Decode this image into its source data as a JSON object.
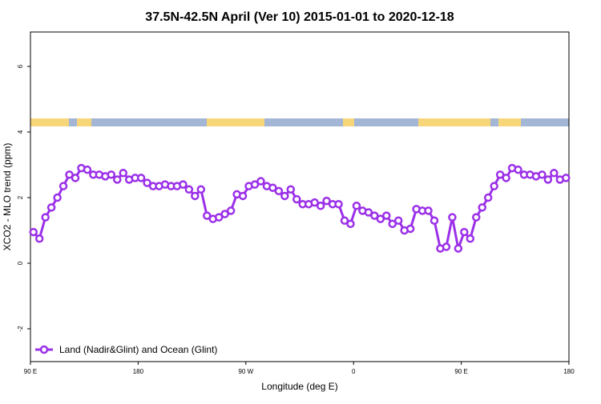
{
  "chart_data": {
    "type": "line",
    "title": "37.5N-42.5N April (Ver 10)   2015-01-01 to 2020-12-18",
    "xlabel": "Longitude (deg E)",
    "ylabel": "XCO2 - MLO trend (ppm)",
    "xlim": [
      90,
      540
    ],
    "xticks": [
      {
        "value": 90,
        "label": "90 E"
      },
      {
        "value": 180,
        "label": "180"
      },
      {
        "value": 270,
        "label": "90 W"
      },
      {
        "value": 360,
        "label": "0"
      },
      {
        "value": 450,
        "label": "90 E"
      },
      {
        "value": 540,
        "label": "180"
      }
    ],
    "ylim": [
      -3,
      7.05
    ],
    "yticks": [
      -2,
      0,
      2,
      4,
      6
    ],
    "grid": false,
    "legend": "bottom-left",
    "x": [
      92.5,
      97.5,
      102.5,
      107.5,
      112.5,
      117.5,
      122.5,
      127.5,
      132.5,
      137.5,
      142.5,
      147.5,
      152.5,
      157.5,
      162.5,
      167.5,
      172.5,
      177.5,
      182.5,
      187.5,
      192.5,
      197.5,
      202.5,
      207.5,
      212.5,
      217.5,
      222.5,
      227.5,
      232.5,
      237.5,
      242.5,
      247.5,
      252.5,
      257.5,
      262.5,
      267.5,
      272.5,
      277.5,
      282.5,
      287.5,
      292.5,
      297.5,
      302.5,
      307.5,
      312.5,
      317.5,
      322.5,
      327.5,
      332.5,
      337.5,
      342.5,
      347.5,
      352.5,
      357.5,
      362.5,
      367.5,
      372.5,
      377.5,
      382.5,
      387.5,
      392.5,
      397.5,
      402.5,
      407.5,
      412.5,
      417.5,
      422.5,
      427.5,
      432.5,
      437.5,
      442.5,
      447.5,
      452.5,
      457.5,
      462.5,
      467.5,
      472.5,
      477.5,
      482.5,
      487.5,
      492.5,
      497.5,
      502.5,
      507.5,
      512.5,
      517.5,
      522.5,
      527.5,
      532.5,
      537.5
    ],
    "series": [
      {
        "name": "Land (Nadir&Glint) and Ocean (Glint)",
        "color": "#9b30e8",
        "values": [
          0.95,
          0.75,
          1.4,
          1.7,
          2.0,
          2.35,
          2.7,
          2.6,
          2.9,
          2.85,
          2.7,
          2.7,
          2.65,
          2.7,
          2.55,
          2.75,
          2.55,
          2.6,
          2.6,
          2.45,
          2.35,
          2.35,
          2.4,
          2.35,
          2.35,
          2.4,
          2.25,
          2.05,
          2.25,
          1.45,
          1.35,
          1.4,
          1.5,
          1.6,
          2.1,
          2.05,
          2.35,
          2.4,
          2.5,
          2.35,
          2.3,
          2.2,
          2.05,
          2.25,
          1.95,
          1.8,
          1.8,
          1.85,
          1.75,
          1.9,
          1.8,
          1.8,
          1.3,
          1.2,
          1.75,
          1.6,
          1.55,
          1.45,
          1.35,
          1.45,
          1.2,
          1.3,
          1.0,
          1.05,
          1.65,
          1.6,
          1.6,
          1.3,
          0.45,
          0.5,
          1.4,
          0.45,
          0.95,
          0.75,
          1.4,
          1.7,
          2.0,
          2.35,
          2.7,
          2.6,
          2.9,
          2.85,
          2.7,
          2.7,
          2.65,
          2.7,
          2.55,
          2.75,
          2.55,
          2.6
        ]
      }
    ]
  }
}
